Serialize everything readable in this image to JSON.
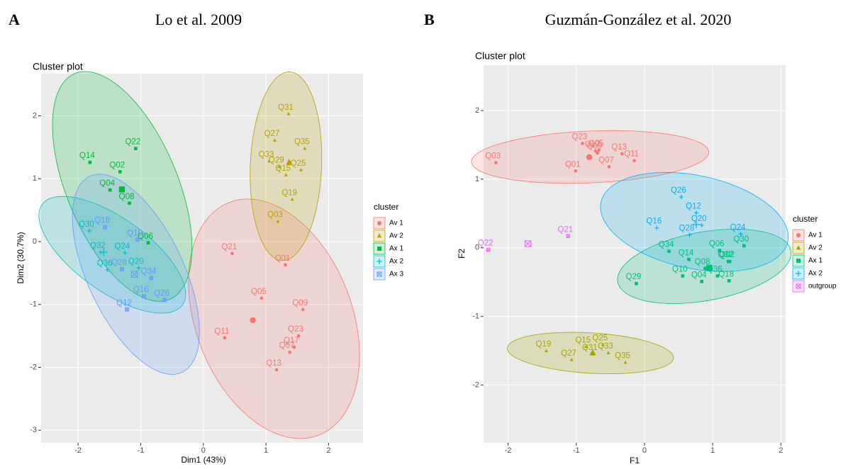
{
  "chart_data": [
    {
      "type": "scatter",
      "panel_label": "A",
      "heading": "Lo et al. 2009",
      "title": "Cluster plot",
      "x_label": "Dim1 (43%)",
      "y_label": "Dim2 (30.7%)",
      "legend_title": "cluster",
      "xlim": [
        -2.59,
        2.55
      ],
      "ylim": [
        -3.2,
        2.67
      ],
      "xticks": [
        -2,
        -1,
        0,
        1,
        2
      ],
      "yticks": [
        -3,
        -2,
        -1,
        0,
        1,
        2
      ],
      "grid": true,
      "series": [
        {
          "name": "Av 1",
          "color": "#F8766D",
          "shape": "circle",
          "labels": [
            "Q21",
            "Q01",
            "Q05",
            "Q09",
            "Q23",
            "Q17",
            "Q11",
            "Q07",
            "Q13"
          ],
          "x": [
            0.46,
            1.31,
            0.93,
            1.59,
            1.52,
            1.45,
            0.34,
            1.38,
            1.17
          ],
          "y": [
            -0.19,
            -0.37,
            -0.9,
            -1.08,
            -1.5,
            -1.68,
            -1.53,
            -1.76,
            -2.04
          ],
          "center": [
            0.79,
            -1.25
          ]
        },
        {
          "name": "Av 2",
          "color": "#B79F00",
          "shape": "triangle",
          "labels": [
            "Q31",
            "Q27",
            "Q33",
            "Q35",
            "Q25",
            "Q29",
            "Q15",
            "Q19",
            "Q03"
          ],
          "x": [
            1.36,
            1.14,
            1.05,
            1.62,
            1.56,
            1.21,
            1.32,
            1.42,
            1.19
          ],
          "y": [
            2.03,
            1.61,
            1.28,
            1.48,
            1.14,
            1.19,
            1.06,
            0.67,
            0.32
          ],
          "center": [
            1.37,
            1.26
          ]
        },
        {
          "name": "Ax 1",
          "color": "#00BA38",
          "shape": "square",
          "labels": [
            "Q14",
            "Q22",
            "Q02",
            "Q04",
            "Q08",
            "Q06"
          ],
          "x": [
            -1.81,
            -1.08,
            -1.33,
            -1.49,
            -1.18,
            -0.88
          ],
          "y": [
            1.26,
            1.48,
            1.11,
            0.82,
            0.61,
            -0.02
          ],
          "center": [
            -1.3,
            0.83
          ]
        },
        {
          "name": "Ax 2",
          "color": "#00BFC4",
          "shape": "plus",
          "labels": [
            "Q30",
            "Q32",
            "Q24",
            "Q36",
            "Q20"
          ],
          "x": [
            -1.82,
            -1.64,
            -1.25,
            -1.53,
            -1.03
          ],
          "y": [
            0.17,
            -0.17,
            -0.18,
            -0.45,
            -0.42
          ],
          "center": [
            -1.59,
            -0.17
          ]
        },
        {
          "name": "Ax 3",
          "color": "#619CFF",
          "shape": "boxcross",
          "labels": [
            "Q18",
            "Q10",
            "Q28",
            "Q34",
            "Q16",
            "Q26",
            "Q12"
          ],
          "x": [
            -1.57,
            -1.05,
            -1.3,
            -0.83,
            -0.95,
            -0.62,
            -1.22
          ],
          "y": [
            0.23,
            0.03,
            -0.44,
            -0.58,
            -0.87,
            -0.93,
            -1.08
          ],
          "center": [
            -1.1,
            -0.52
          ]
        }
      ]
    },
    {
      "type": "scatter",
      "panel_label": "B",
      "heading": "Guzmán-González et al. 2020",
      "title": "Cluster plot",
      "x_label": "F1",
      "y_label": "F2",
      "legend_title": "cluster",
      "xlim": [
        -2.36,
        2.07
      ],
      "ylim": [
        -2.84,
        2.66
      ],
      "xticks": [
        -2,
        -1,
        0,
        1,
        2
      ],
      "yticks": [
        -2,
        -1,
        0,
        1,
        2
      ],
      "grid": true,
      "series": [
        {
          "name": "Av 1",
          "color": "#F8766D",
          "shape": "circle",
          "labels": [
            "Q23",
            "Q05",
            "Q13",
            "Q17",
            "Q09",
            "Q07",
            "Q11",
            "Q01",
            "Q03"
          ],
          "x": [
            -0.91,
            -0.67,
            -0.33,
            -0.72,
            -0.69,
            -0.52,
            -0.15,
            -1.01,
            -2.18
          ],
          "y": [
            1.52,
            1.42,
            1.37,
            1.41,
            1.38,
            1.18,
            1.27,
            1.12,
            1.24
          ],
          "center": [
            -0.81,
            1.32
          ]
        },
        {
          "name": "Av 2",
          "color": "#A3A500",
          "shape": "triangle",
          "labels": [
            "Q15",
            "Q25",
            "Q19",
            "Q27",
            "Q31",
            "Q33",
            "Q35"
          ],
          "x": [
            -0.86,
            -0.61,
            -1.44,
            -1.07,
            -0.76,
            -0.53,
            -0.28
          ],
          "y": [
            -1.44,
            -1.41,
            -1.5,
            -1.63,
            -1.55,
            -1.53,
            -1.67
          ],
          "center": [
            -0.76,
            -1.53
          ]
        },
        {
          "name": "Ax 1",
          "color": "#00BF7D",
          "shape": "square",
          "labels": [
            "Q34",
            "Q06",
            "Q02",
            "Q30",
            "Q14",
            "Q08",
            "Q32",
            "Q10",
            "Q04",
            "Q36",
            "Q18",
            "Q29"
          ],
          "x": [
            0.36,
            1.1,
            1.25,
            1.46,
            0.65,
            0.89,
            1.23,
            0.56,
            0.84,
            1.07,
            1.24,
            -0.12
          ],
          "y": [
            -0.05,
            -0.04,
            -0.2,
            0.03,
            -0.17,
            -0.3,
            -0.2,
            -0.41,
            -0.49,
            -0.41,
            -0.48,
            -0.52
          ],
          "center": [
            0.95,
            -0.29
          ]
        },
        {
          "name": "Ax 2",
          "color": "#00B0F6",
          "shape": "plus",
          "labels": [
            "Q26",
            "Q12",
            "Q16",
            "Q28",
            "Q20",
            "Q24"
          ],
          "x": [
            0.54,
            0.76,
            0.18,
            0.66,
            0.84,
            1.41
          ],
          "y": [
            0.74,
            0.51,
            0.29,
            0.19,
            0.33,
            0.2
          ],
          "center": [
            0.76,
            0.34
          ]
        },
        {
          "name": "outgroup",
          "color": "#E76BF3",
          "shape": "boxcross",
          "labels": [
            "Q21",
            "Q22"
          ],
          "x": [
            -1.12,
            -2.29
          ],
          "y": [
            0.17,
            -0.03
          ],
          "center": [
            -1.71,
            0.06
          ]
        }
      ]
    }
  ]
}
